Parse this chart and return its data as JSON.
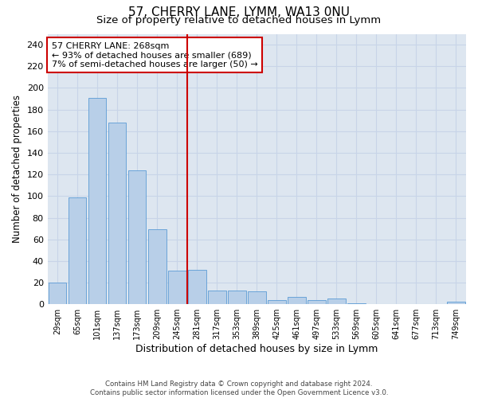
{
  "title": "57, CHERRY LANE, LYMM, WA13 0NU",
  "subtitle": "Size of property relative to detached houses in Lymm",
  "xlabel": "Distribution of detached houses by size in Lymm",
  "ylabel": "Number of detached properties",
  "footer_line1": "Contains HM Land Registry data © Crown copyright and database right 2024.",
  "footer_line2": "Contains public sector information licensed under the Open Government Licence v3.0.",
  "bar_labels": [
    "29sqm",
    "65sqm",
    "101sqm",
    "137sqm",
    "173sqm",
    "209sqm",
    "245sqm",
    "281sqm",
    "317sqm",
    "353sqm",
    "389sqm",
    "425sqm",
    "461sqm",
    "497sqm",
    "533sqm",
    "569sqm",
    "605sqm",
    "641sqm",
    "677sqm",
    "713sqm",
    "749sqm"
  ],
  "bar_values": [
    20,
    99,
    191,
    168,
    124,
    69,
    31,
    32,
    13,
    13,
    12,
    4,
    7,
    4,
    5,
    1,
    0,
    0,
    0,
    0,
    2
  ],
  "bar_color": "#b8cfe8",
  "bar_edge_color": "#5b9bd5",
  "vline_bar_index": 7,
  "vline_color": "#cc0000",
  "annotation_text": "57 CHERRY LANE: 268sqm\n← 93% of detached houses are smaller (689)\n7% of semi-detached houses are larger (50) →",
  "annotation_box_color": "#ffffff",
  "annotation_box_edge": "#cc0000",
  "ylim": [
    0,
    250
  ],
  "yticks": [
    0,
    20,
    40,
    60,
    80,
    100,
    120,
    140,
    160,
    180,
    200,
    220,
    240
  ],
  "grid_color": "#c8d4e8",
  "background_color": "#dde6f0",
  "fig_background": "#ffffff",
  "title_fontsize": 11,
  "subtitle_fontsize": 9.5
}
